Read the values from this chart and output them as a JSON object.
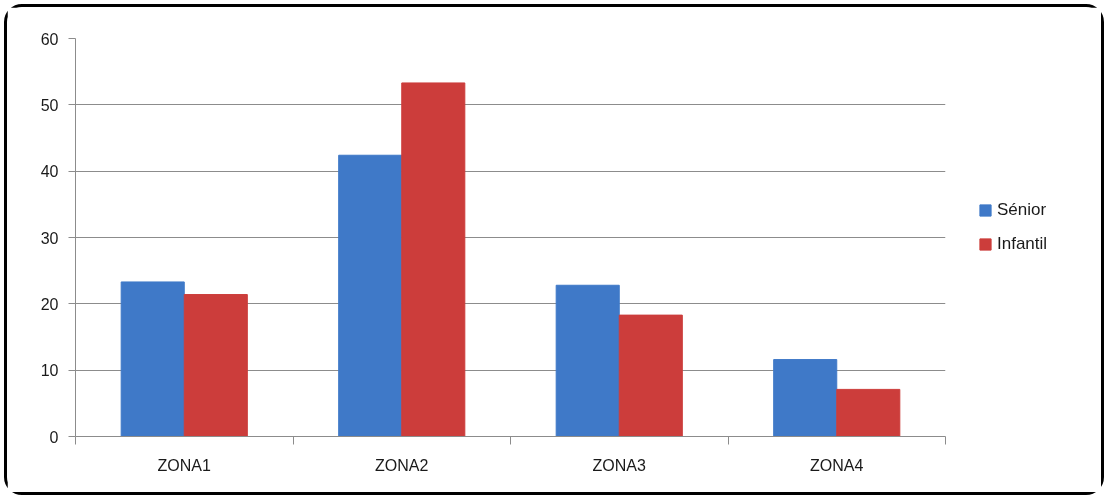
{
  "chart_data": {
    "type": "bar",
    "categories": [
      "ZONA1",
      "ZONA2",
      "ZONA3",
      "ZONA4"
    ],
    "series": [
      {
        "name": "Sénior",
        "color": "#3f79c8",
        "values": [
          23.3,
          42.4,
          22.8,
          11.6
        ]
      },
      {
        "name": "Infantil",
        "color": "#cc3d3b",
        "values": [
          21.4,
          53.3,
          18.3,
          7.1
        ]
      }
    ],
    "ylim": [
      0,
      60
    ],
    "yticks": [
      0,
      10,
      20,
      30,
      40,
      50,
      60
    ],
    "grid": "y",
    "legend": "right"
  }
}
